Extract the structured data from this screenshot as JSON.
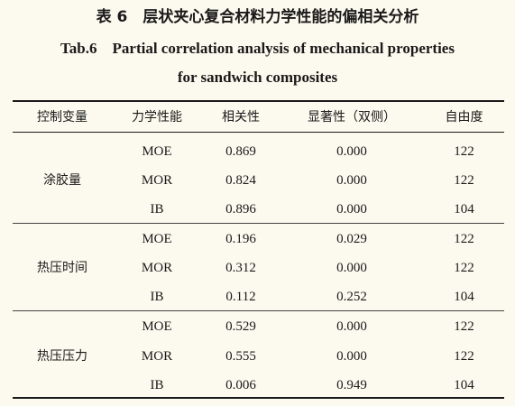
{
  "caption": {
    "cn": "表 6　层状夹心复合材料力学性能的偏相关分析",
    "en_line1": "Tab.6　Partial correlation analysis of mechanical properties",
    "en_line2": "for sandwich composites"
  },
  "table": {
    "headers": [
      "控制变量",
      "力学性能",
      "相关性",
      "显著性（双侧）",
      "自由度"
    ],
    "groups": [
      {
        "control": "涂胶量",
        "rows": [
          {
            "property": "MOE",
            "correlation": "0.869",
            "significance": "0.000",
            "df": "122"
          },
          {
            "property": "MOR",
            "correlation": "0.824",
            "significance": "0.000",
            "df": "122"
          },
          {
            "property": "IB",
            "correlation": "0.896",
            "significance": "0.000",
            "df": "104"
          }
        ]
      },
      {
        "control": "热压时间",
        "rows": [
          {
            "property": "MOE",
            "correlation": "0.196",
            "significance": "0.029",
            "df": "122"
          },
          {
            "property": "MOR",
            "correlation": "0.312",
            "significance": "0.000",
            "df": "122"
          },
          {
            "property": "IB",
            "correlation": "0.112",
            "significance": "0.252",
            "df": "104"
          }
        ]
      },
      {
        "control": "热压压力",
        "rows": [
          {
            "property": "MOE",
            "correlation": "0.529",
            "significance": "0.000",
            "df": "122"
          },
          {
            "property": "MOR",
            "correlation": "0.555",
            "significance": "0.000",
            "df": "122"
          },
          {
            "property": "IB",
            "correlation": "0.006",
            "significance": "0.949",
            "df": "104"
          }
        ]
      }
    ]
  }
}
